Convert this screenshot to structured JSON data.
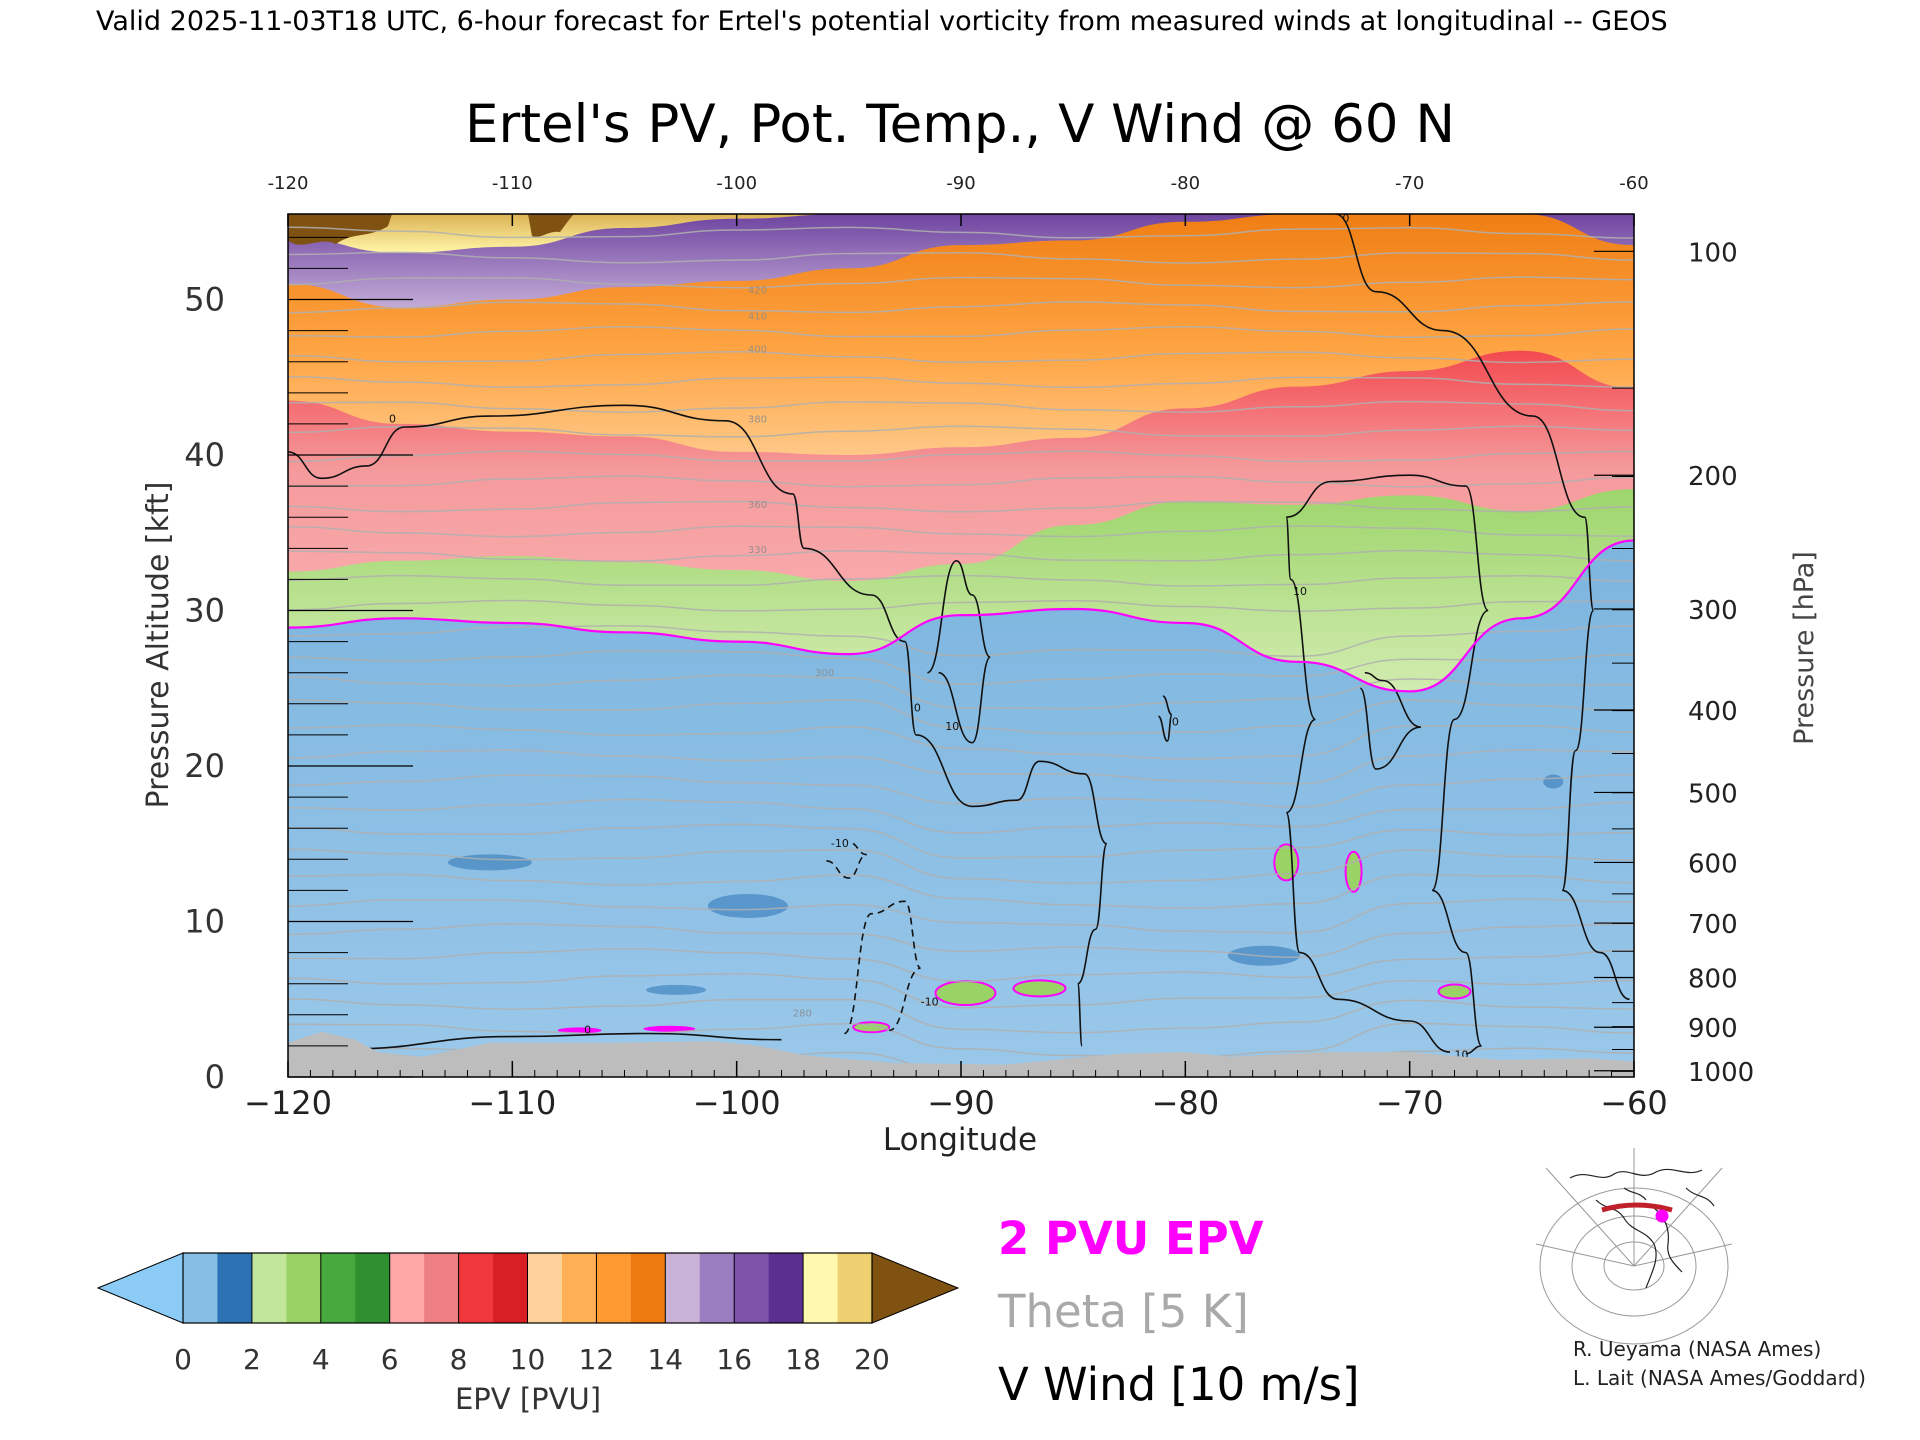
{
  "header": {
    "valid_line": "Valid 2025-11-03T18 UTC, 6-hour forecast for Ertel's potential vorticity from measured winds at longitudinal -- GEOS"
  },
  "chart_data": {
    "type": "heatmap",
    "title": "Ertel's PV, Pot. Temp., V Wind @ 60 N",
    "xlabel": "Longitude",
    "ylabel_left": "Pressure Altitude [kft]",
    "ylabel_right": "Pressure [hPa]",
    "xlim": [
      -120,
      -60
    ],
    "ylim": [
      0,
      55.5
    ],
    "x_ticks_bottom": [
      "−120",
      "−110",
      "−100",
      "−90",
      "−80",
      "−70",
      "−60"
    ],
    "x_ticks_top": [
      "-120",
      "-110",
      "-100",
      "-90",
      "-80",
      "-70",
      "-60"
    ],
    "y_ticks_left": [
      "0",
      "10",
      "20",
      "30",
      "40",
      "50"
    ],
    "y_ticks_right": [
      {
        "label": "100",
        "kft": 53.1
      },
      {
        "label": "200",
        "kft": 38.7
      },
      {
        "label": "300",
        "kft": 30.1
      },
      {
        "label": "400",
        "kft": 23.6
      },
      {
        "label": "500",
        "kft": 18.3
      },
      {
        "label": "600",
        "kft": 13.8
      },
      {
        "label": "700",
        "kft": 9.9
      },
      {
        "label": "800",
        "kft": 6.4
      },
      {
        "label": "900",
        "kft": 3.2
      },
      {
        "label": "1000",
        "kft": 0.4
      }
    ],
    "epv_bands_kft": {
      "longitude": [
        -120,
        -115,
        -110,
        -105,
        -100,
        -95,
        -90,
        -85,
        -80,
        -75,
        -70,
        -65,
        -60
      ],
      "pv2_base": [
        28.9,
        29.5,
        29.2,
        28.6,
        28.0,
        27.2,
        29.7,
        30.1,
        29.2,
        26.7,
        24.8,
        29.5,
        34.5
      ],
      "pv6_base": [
        32.5,
        33.2,
        33.5,
        33.1,
        32.6,
        31.9,
        33.0,
        35.5,
        37.0,
        36.8,
        37.4,
        36.4,
        37.8
      ],
      "pv9_base": [
        43.5,
        42.0,
        41.5,
        41.2,
        40.2,
        40.0,
        40.5,
        41.1,
        43.0,
        44.4,
        45.4,
        46.7,
        44.3
      ],
      "pv14_base": [
        51.0,
        49.5,
        50.0,
        50.8,
        51.2,
        52.0,
        53.5,
        53.8,
        55.0,
        55.5,
        55.5,
        55.5,
        53.5
      ],
      "pv18_base": [
        54.0,
        53.0,
        53.4,
        54.6,
        55.2,
        55.5,
        55.5,
        55.5,
        55.5,
        55.5,
        55.5,
        55.5,
        55.5
      ]
    },
    "theta_contours": {
      "interval_K": 5,
      "labels": [
        "280",
        "300",
        "330",
        "360",
        "380",
        "400",
        "410",
        "420"
      ]
    },
    "v_wind_contours": {
      "interval_ms": 10,
      "labels": [
        "0",
        "10",
        "-10"
      ]
    },
    "colorbar": {
      "label": "EPV [PVU]",
      "ticks": [
        "0",
        "2",
        "4",
        "6",
        "8",
        "10",
        "12",
        "14",
        "16",
        "18",
        "20"
      ],
      "colors": [
        "#85bfe3",
        "#2c72b5",
        "#c2e59c",
        "#99d366",
        "#48aa3e",
        "#2f902f",
        "#ffa8a8",
        "#ee8083",
        "#f0383c",
        "#d81f24",
        "#ffd19a",
        "#ffaf55",
        "#ff9a33",
        "#ec7a11",
        "#c9b2d8",
        "#9a7cc0",
        "#7e52a9",
        "#5b2f8f",
        "#fff9b0",
        "#eed070"
      ],
      "under_color": "#8ccbf5",
      "over_color": "#7f5212"
    },
    "legend": [
      {
        "label": "2 PVU EPV",
        "color": "#ff00ff"
      },
      {
        "label": "Theta [5 K]",
        "color": "#a9a9a9"
      },
      {
        "label": "V Wind [10 m/s]",
        "color": "#000000"
      }
    ],
    "inset_map": {
      "section_latitude": "60 N",
      "line_color": "#c0202a",
      "marker_color": "#ff00ff"
    }
  },
  "credits": [
    "R. Ueyama (NASA Ames)",
    "L. Lait (NASA Ames/Goddard)"
  ]
}
